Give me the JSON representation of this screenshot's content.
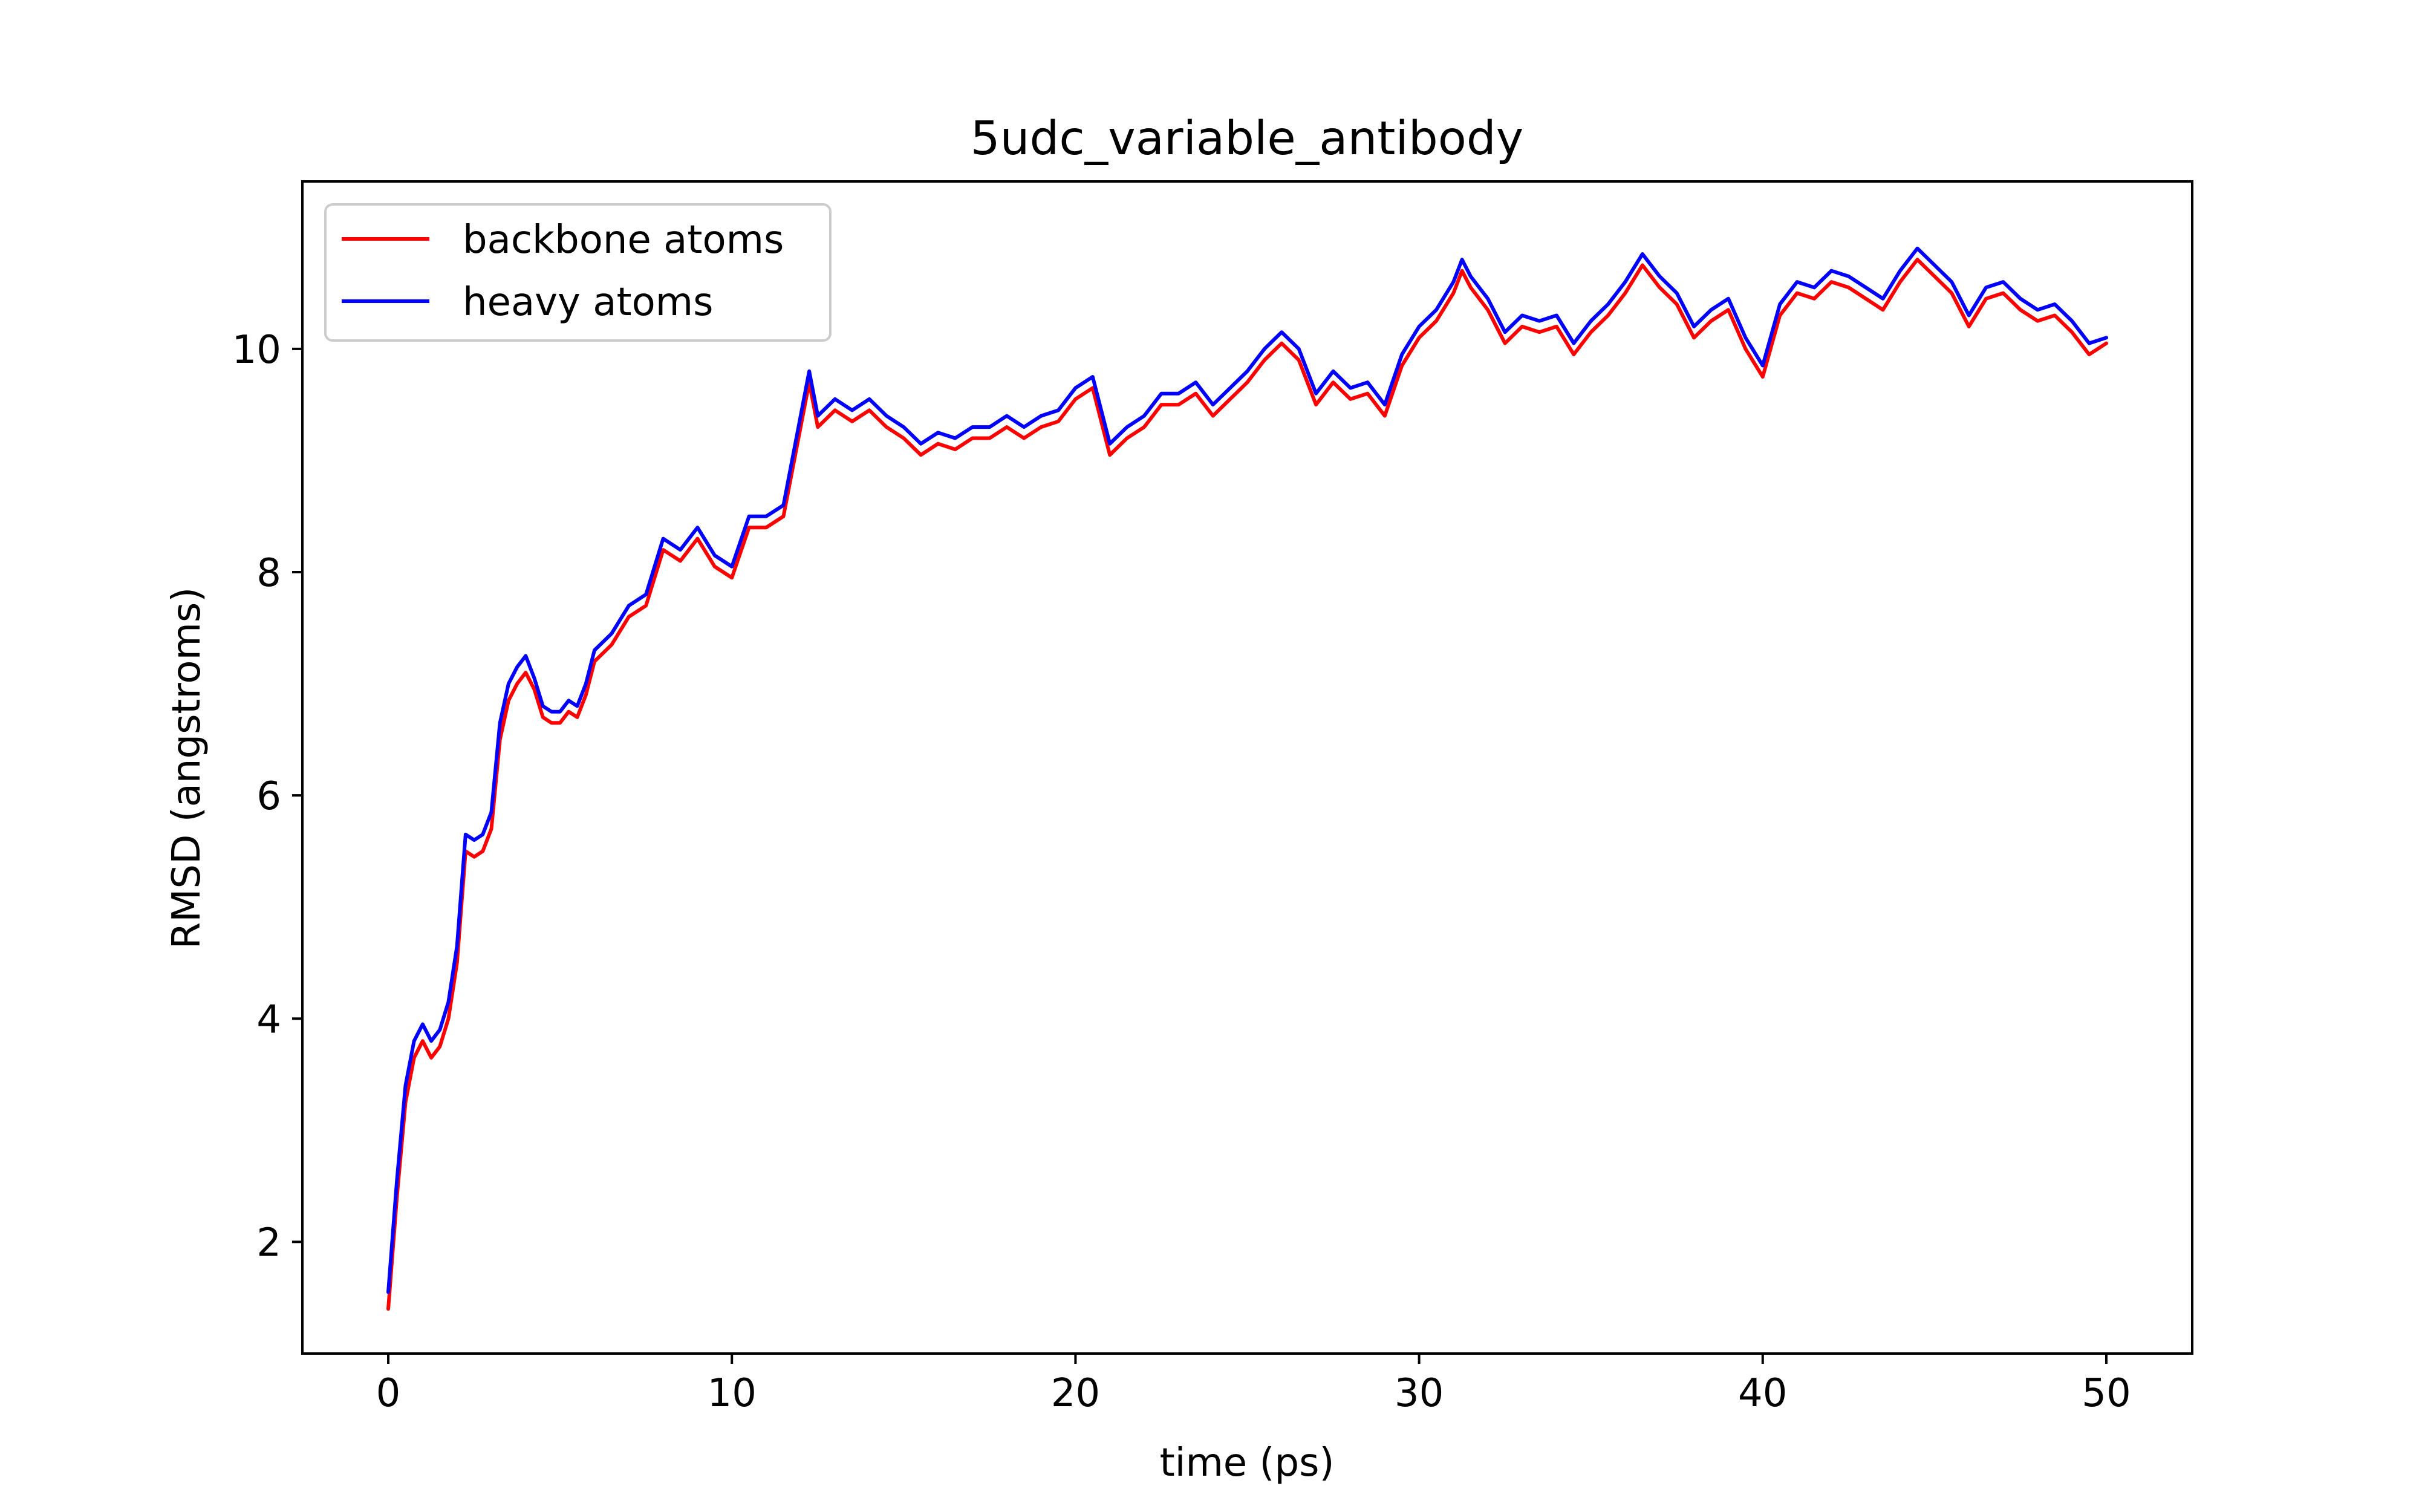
{
  "chart_data": {
    "type": "line",
    "title": "5udc_variable_antibody",
    "xlabel": "time (ps)",
    "ylabel": "RMSD (angstroms)",
    "xlim": [
      -2.5,
      52.5
    ],
    "ylim": [
      1.0,
      11.5
    ],
    "xticks": [
      0,
      10,
      20,
      30,
      40,
      50
    ],
    "yticks": [
      2,
      4,
      6,
      8,
      10
    ],
    "grid": false,
    "legend_position": "upper-left",
    "series": [
      {
        "name": "backbone atoms",
        "color": "#ff0000",
        "x": [
          0,
          0.25,
          0.5,
          0.75,
          1.0,
          1.25,
          1.5,
          1.75,
          2.0,
          2.25,
          2.5,
          2.75,
          3.0,
          3.25,
          3.5,
          3.75,
          4.0,
          4.25,
          4.5,
          4.75,
          5.0,
          5.25,
          5.5,
          5.75,
          6.0,
          6.5,
          7.0,
          7.5,
          8.0,
          8.5,
          9.0,
          9.5,
          10.0,
          10.5,
          11.0,
          11.5,
          12.0,
          12.25,
          12.5,
          13.0,
          13.5,
          14.0,
          14.5,
          15.0,
          15.5,
          16.0,
          16.5,
          17.0,
          17.5,
          18.0,
          18.5,
          19.0,
          19.5,
          20.0,
          20.5,
          21.0,
          21.5,
          22.0,
          22.5,
          23.0,
          23.5,
          24.0,
          24.5,
          25.0,
          25.5,
          26.0,
          26.5,
          27.0,
          27.5,
          28.0,
          28.5,
          29.0,
          29.5,
          30.0,
          30.5,
          31.0,
          31.25,
          31.5,
          32.0,
          32.5,
          33.0,
          33.5,
          34.0,
          34.5,
          35.0,
          35.5,
          36.0,
          36.5,
          37.0,
          37.5,
          38.0,
          38.5,
          39.0,
          39.5,
          40.0,
          40.5,
          41.0,
          41.5,
          42.0,
          42.5,
          43.0,
          43.5,
          44.0,
          44.5,
          45.0,
          45.5,
          46.0,
          46.5,
          47.0,
          47.5,
          48.0,
          48.5,
          49.0,
          49.5,
          50.0
        ],
        "y": [
          1.4,
          2.4,
          3.25,
          3.65,
          3.8,
          3.65,
          3.75,
          4.0,
          4.5,
          5.5,
          5.45,
          5.5,
          5.7,
          6.5,
          6.85,
          7.0,
          7.1,
          6.95,
          6.7,
          6.65,
          6.65,
          6.75,
          6.7,
          6.9,
          7.2,
          7.35,
          7.6,
          7.7,
          8.2,
          8.1,
          8.3,
          8.05,
          7.95,
          8.4,
          8.4,
          8.5,
          9.3,
          9.7,
          9.3,
          9.45,
          9.35,
          9.45,
          9.3,
          9.2,
          9.05,
          9.15,
          9.1,
          9.2,
          9.2,
          9.3,
          9.2,
          9.3,
          9.35,
          9.55,
          9.65,
          9.05,
          9.2,
          9.3,
          9.5,
          9.5,
          9.6,
          9.4,
          9.55,
          9.7,
          9.9,
          10.05,
          9.9,
          9.5,
          9.7,
          9.55,
          9.6,
          9.4,
          9.85,
          10.1,
          10.25,
          10.5,
          10.7,
          10.55,
          10.35,
          10.05,
          10.2,
          10.15,
          10.2,
          9.95,
          10.15,
          10.3,
          10.5,
          10.75,
          10.55,
          10.4,
          10.1,
          10.25,
          10.35,
          10.0,
          9.75,
          10.3,
          10.5,
          10.45,
          10.6,
          10.55,
          10.45,
          10.35,
          10.6,
          10.8,
          10.65,
          10.5,
          10.2,
          10.45,
          10.5,
          10.35,
          10.25,
          10.3,
          10.15,
          9.95,
          10.05
        ]
      },
      {
        "name": "heavy atoms",
        "color": "#0000ff",
        "x": [
          0,
          0.25,
          0.5,
          0.75,
          1.0,
          1.25,
          1.5,
          1.75,
          2.0,
          2.25,
          2.5,
          2.75,
          3.0,
          3.25,
          3.5,
          3.75,
          4.0,
          4.25,
          4.5,
          4.75,
          5.0,
          5.25,
          5.5,
          5.75,
          6.0,
          6.5,
          7.0,
          7.5,
          8.0,
          8.5,
          9.0,
          9.5,
          10.0,
          10.5,
          11.0,
          11.5,
          12.0,
          12.25,
          12.5,
          13.0,
          13.5,
          14.0,
          14.5,
          15.0,
          15.5,
          16.0,
          16.5,
          17.0,
          17.5,
          18.0,
          18.5,
          19.0,
          19.5,
          20.0,
          20.5,
          21.0,
          21.5,
          22.0,
          22.5,
          23.0,
          23.5,
          24.0,
          24.5,
          25.0,
          25.5,
          26.0,
          26.5,
          27.0,
          27.5,
          28.0,
          28.5,
          29.0,
          29.5,
          30.0,
          30.5,
          31.0,
          31.25,
          31.5,
          32.0,
          32.5,
          33.0,
          33.5,
          34.0,
          34.5,
          35.0,
          35.5,
          36.0,
          36.5,
          37.0,
          37.5,
          38.0,
          38.5,
          39.0,
          39.5,
          40.0,
          40.5,
          41.0,
          41.5,
          42.0,
          42.5,
          43.0,
          43.5,
          44.0,
          44.5,
          45.0,
          45.5,
          46.0,
          46.5,
          47.0,
          47.5,
          48.0,
          48.5,
          49.0,
          49.5,
          50.0
        ],
        "y": [
          1.55,
          2.55,
          3.4,
          3.8,
          3.95,
          3.8,
          3.9,
          4.15,
          4.65,
          5.65,
          5.6,
          5.65,
          5.85,
          6.65,
          7.0,
          7.15,
          7.25,
          7.05,
          6.8,
          6.75,
          6.75,
          6.85,
          6.8,
          7.0,
          7.3,
          7.45,
          7.7,
          7.8,
          8.3,
          8.2,
          8.4,
          8.15,
          8.05,
          8.5,
          8.5,
          8.6,
          9.4,
          9.8,
          9.4,
          9.55,
          9.45,
          9.55,
          9.4,
          9.3,
          9.15,
          9.25,
          9.2,
          9.3,
          9.3,
          9.4,
          9.3,
          9.4,
          9.45,
          9.65,
          9.75,
          9.15,
          9.3,
          9.4,
          9.6,
          9.6,
          9.7,
          9.5,
          9.65,
          9.8,
          10.0,
          10.15,
          10.0,
          9.6,
          9.8,
          9.65,
          9.7,
          9.5,
          9.95,
          10.2,
          10.35,
          10.6,
          10.8,
          10.65,
          10.45,
          10.15,
          10.3,
          10.25,
          10.3,
          10.05,
          10.25,
          10.4,
          10.6,
          10.85,
          10.65,
          10.5,
          10.2,
          10.35,
          10.45,
          10.1,
          9.85,
          10.4,
          10.6,
          10.55,
          10.7,
          10.65,
          10.55,
          10.45,
          10.7,
          10.9,
          10.75,
          10.6,
          10.3,
          10.55,
          10.6,
          10.45,
          10.35,
          10.4,
          10.25,
          10.05,
          10.1
        ]
      }
    ]
  }
}
